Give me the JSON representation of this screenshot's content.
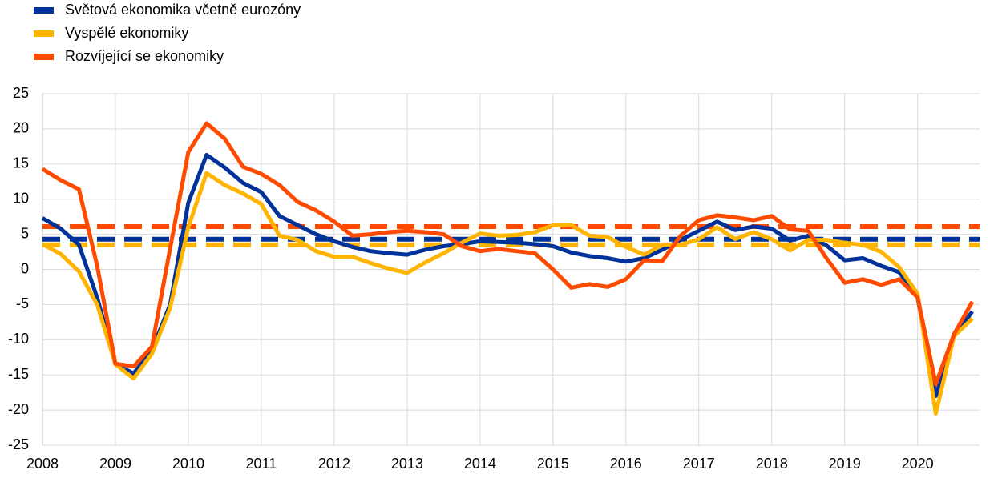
{
  "chart_data": {
    "type": "line",
    "x": [
      2008,
      2008.25,
      2008.5,
      2008.75,
      2009,
      2009.25,
      2009.5,
      2009.75,
      2010,
      2010.25,
      2010.5,
      2010.75,
      2011,
      2011.25,
      2011.5,
      2011.75,
      2012,
      2012.25,
      2012.5,
      2012.75,
      2013,
      2013.25,
      2013.5,
      2013.75,
      2014,
      2014.25,
      2014.5,
      2014.75,
      2015,
      2015.25,
      2015.5,
      2015.75,
      2016,
      2016.25,
      2016.5,
      2016.75,
      2017,
      2017.25,
      2017.5,
      2017.75,
      2018,
      2018.25,
      2018.5,
      2018.75,
      2019,
      2019.25,
      2019.5,
      2019.75,
      2020,
      2020.25,
      2020.5,
      2020.75
    ],
    "series": [
      {
        "name": "Světová ekonomika včetně eurozóny",
        "color": "#003299",
        "average": 4.3,
        "values": [
          7.3,
          5.8,
          3.5,
          -4,
          -13.5,
          -14.8,
          -11.5,
          -5,
          9.5,
          16.3,
          14.5,
          12.3,
          11,
          7.6,
          6.3,
          5,
          4,
          3.2,
          2.6,
          2.3,
          2.1,
          2.8,
          3.3,
          3.6,
          4.0,
          3.9,
          3.8,
          3.6,
          3.3,
          2.4,
          1.9,
          1.6,
          1.1,
          1.6,
          2.8,
          4.2,
          5.5,
          6.8,
          5.6,
          6.1,
          5.8,
          4.1,
          4.8,
          3.4,
          1.3,
          1.6,
          0.5,
          -0.4,
          -4,
          -18,
          -9.5,
          -6
        ]
      },
      {
        "name": "Vyspělé ekonomiky",
        "color": "#ffb400",
        "average": 3.5,
        "values": [
          3.6,
          2.2,
          -0.3,
          -5,
          -13.5,
          -15.5,
          -12,
          -5.5,
          6,
          13.7,
          12,
          10.8,
          9.3,
          4.8,
          4.2,
          2.6,
          1.8,
          1.8,
          0.9,
          0.1,
          -0.5,
          1,
          2.3,
          3.8,
          5.1,
          4.8,
          4.9,
          5.3,
          6.3,
          6.3,
          4.8,
          4.6,
          3.2,
          2.1,
          3.5,
          3.5,
          4.3,
          6.0,
          4.3,
          5.3,
          4.3,
          2.7,
          4.2,
          4.2,
          3.8,
          3.5,
          2.5,
          0.3,
          -3.5,
          -20.5,
          -9.5,
          -7
        ]
      },
      {
        "name": "Rozvíjející se ekonomiky",
        "color": "#ff4b00",
        "average": 6.1,
        "values": [
          14.3,
          12.7,
          11.4,
          0.5,
          -13.4,
          -13.8,
          -11,
          3,
          16.7,
          20.8,
          18.6,
          14.6,
          13.6,
          12,
          9.6,
          8.4,
          6.8,
          4.8,
          5,
          5.3,
          5.5,
          5.3,
          5,
          3.3,
          2.6,
          2.9,
          2.6,
          2.3,
          0,
          -2.6,
          -2.1,
          -2.5,
          -1.4,
          1.3,
          1.2,
          4.8,
          7,
          7.7,
          7.4,
          7,
          7.6,
          5.7,
          5.5,
          1.6,
          -1.9,
          -1.4,
          -2.2,
          -1.4,
          -4,
          -16.3,
          -9.2,
          -4.6
        ]
      }
    ],
    "xlim": [
      2008,
      2020.85
    ],
    "xticks": [
      2008,
      2009,
      2010,
      2011,
      2012,
      2013,
      2014,
      2015,
      2016,
      2017,
      2018,
      2019,
      2020
    ],
    "ylim": [
      -25,
      25
    ],
    "yticks": [
      -25,
      -20,
      -15,
      -10,
      -5,
      0,
      5,
      10,
      15,
      20,
      25
    ],
    "grid": true,
    "legend": "top-left"
  }
}
